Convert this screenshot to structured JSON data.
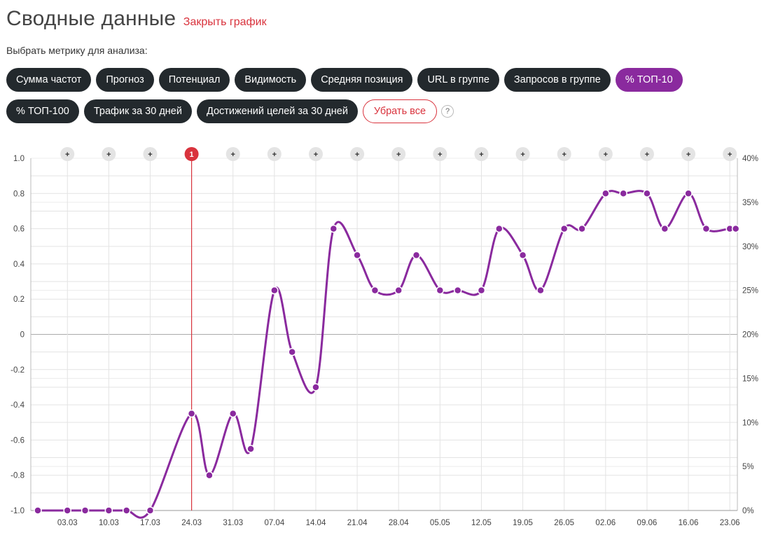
{
  "header": {
    "title": "Сводные данные",
    "close_link": "Закрыть график"
  },
  "metric_selector": {
    "label": "Выбрать метрику для анализа:",
    "buttons_row1": [
      "Сумма частот",
      "Прогноз",
      "Потенциал",
      "Видимость",
      "Средняя позиция",
      "URL в группе",
      "Запросов в группе",
      "% ТОП-10"
    ],
    "buttons_row2": [
      "% ТОП-100",
      "Трафик за 30 дней",
      "Достижений целей за 30 дней"
    ],
    "active_button": "% ТОП-10",
    "clear_button": "Убрать все",
    "help_icon": "?"
  },
  "colors": {
    "accent": "#8a2a9e",
    "pill_dark": "#23292d",
    "danger": "#d9333d",
    "grid": "#e3e3e3"
  },
  "chart_data": {
    "type": "line",
    "series": [
      {
        "x": [
          "27.02",
          "03.03",
          "06.03",
          "10.03",
          "13.03",
          "17.03",
          "24.03",
          "27.03",
          "31.03",
          "03.04",
          "07.04",
          "10.04",
          "14.04",
          "17.04",
          "21.04",
          "24.04",
          "28.04",
          "01.05",
          "05.05",
          "08.05",
          "12.05",
          "15.05",
          "19.05",
          "22.05",
          "26.05",
          "29.05",
          "02.06",
          "05.06",
          "09.06",
          "12.06",
          "16.06",
          "19.06",
          "23.06",
          "24.06"
        ],
        "values": [
          -1.0,
          -1.0,
          -1.0,
          -1.0,
          -1.0,
          -1.0,
          -0.45,
          -0.8,
          -0.45,
          -0.65,
          0.25,
          -0.1,
          -0.3,
          0.6,
          0.45,
          0.25,
          0.25,
          0.45,
          0.25,
          0.25,
          0.25,
          0.6,
          0.45,
          0.25,
          0.6,
          0.6,
          0.8,
          0.8,
          0.8,
          0.6,
          0.8,
          0.6,
          0.6,
          0.6
        ]
      }
    ],
    "x_tick_labels": [
      "03.03",
      "10.03",
      "17.03",
      "24.03",
      "31.03",
      "07.04",
      "14.04",
      "21.04",
      "28.04",
      "05.05",
      "12.05",
      "19.05",
      "26.05",
      "02.06",
      "09.06",
      "16.06",
      "23.06"
    ],
    "y_left_ticks": [
      "1.0",
      "0.8",
      "0.6",
      "0.4",
      "0.2",
      "0",
      "-0.2",
      "-0.4",
      "-0.6",
      "-0.8",
      "-1.0"
    ],
    "y_right_ticks": [
      "40%",
      "35%",
      "30%",
      "25%",
      "20%",
      "15%",
      "10%",
      "5%",
      "0%"
    ],
    "ylim": [
      -1.0,
      1.0
    ],
    "grid": true,
    "event_markers": {
      "add_symbol": "+",
      "flag": {
        "label": "1",
        "date": "24.03"
      }
    }
  }
}
